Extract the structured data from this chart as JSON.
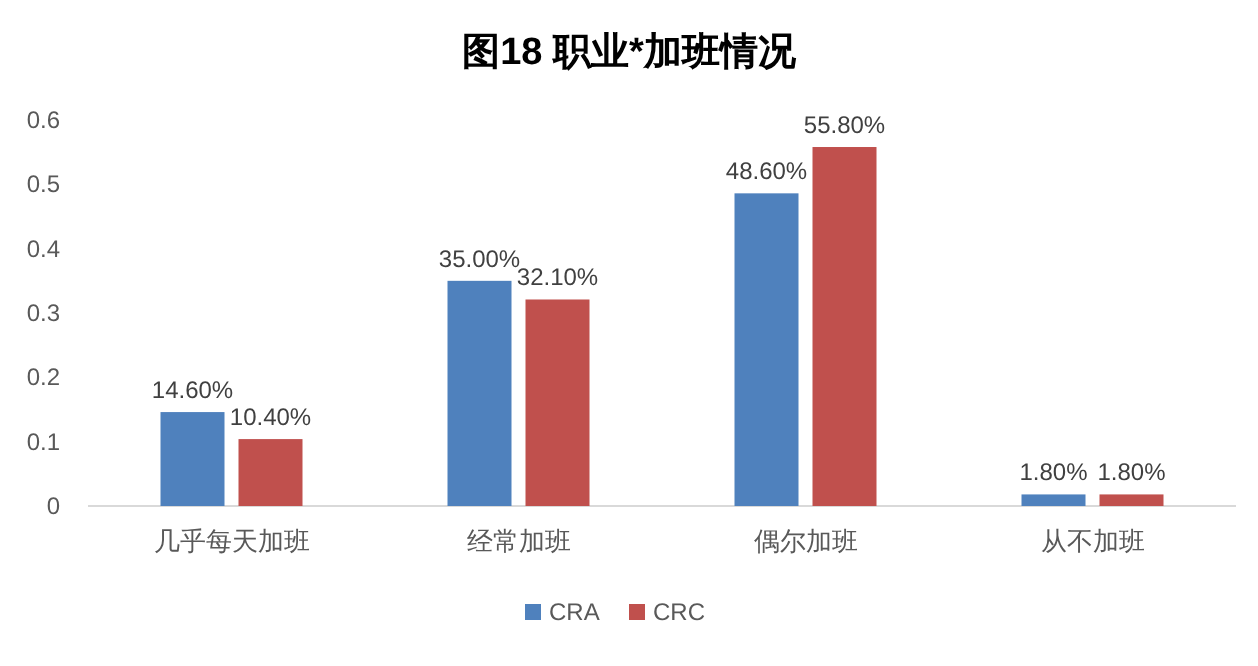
{
  "chart_data": {
    "type": "bar",
    "title": "图18 职业*加班情况",
    "categories": [
      "几乎每天加班",
      "经常加班",
      "偶尔加班",
      "从不加班"
    ],
    "series": [
      {
        "name": "CRA",
        "color": "#4f81bd",
        "values": [
          0.146,
          0.35,
          0.486,
          0.018
        ],
        "value_labels": [
          "14.60%",
          "35.00%",
          "48.60%",
          "1.80%"
        ]
      },
      {
        "name": "CRC",
        "color": "#c0504d",
        "values": [
          0.104,
          0.321,
          0.558,
          0.018
        ],
        "value_labels": [
          "10.40%",
          "32.10%",
          "55.80%",
          "1.80%"
        ]
      }
    ],
    "ylim": [
      0,
      0.6
    ],
    "yticks": [
      0,
      0.1,
      0.2,
      0.3,
      0.4,
      0.5,
      0.6
    ],
    "legend": "bottom"
  }
}
